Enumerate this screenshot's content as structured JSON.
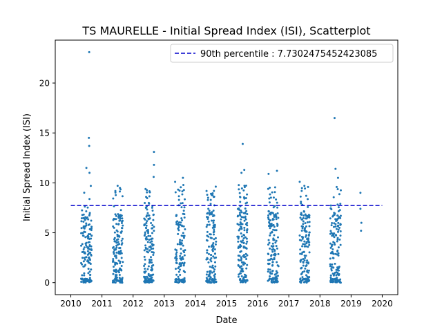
{
  "chart_data": {
    "type": "scatter",
    "title": "TS MAURELLE - Initial Spread Index (ISI), Scatterplot",
    "xlabel": "Date",
    "ylabel": "Initial Spread Index (ISI)",
    "xlim": [
      2009.5,
      2020.5
    ],
    "ylim": [
      -1.2,
      24.3
    ],
    "x_ticks": [
      "2010",
      "2011",
      "2012",
      "2013",
      "2014",
      "2015",
      "2016",
      "2017",
      "2018",
      "2019",
      "2020"
    ],
    "y_ticks": [
      "0",
      "5",
      "10",
      "15",
      "20"
    ],
    "legend": {
      "label": "90th percentile : 7.7302475452423085",
      "placement": "top-right"
    },
    "reference_line": {
      "value": 7.7302475452423085,
      "x_range": [
        2010,
        2020
      ],
      "color": "#0000cc",
      "style": "dashed"
    },
    "point_color": "#1f77b4",
    "seasons": [
      {
        "year": 2010,
        "start": 2010.33,
        "end": 2010.67,
        "n": 150
      },
      {
        "year": 2011,
        "start": 2011.35,
        "end": 2011.67,
        "n": 170
      },
      {
        "year": 2012,
        "start": 2012.35,
        "end": 2012.67,
        "n": 160
      },
      {
        "year": 2013,
        "start": 2013.35,
        "end": 2013.67,
        "n": 140
      },
      {
        "year": 2014,
        "start": 2014.35,
        "end": 2014.67,
        "n": 155
      },
      {
        "year": 2015,
        "start": 2015.35,
        "end": 2015.67,
        "n": 165
      },
      {
        "year": 2016,
        "start": 2016.33,
        "end": 2016.67,
        "n": 160
      },
      {
        "year": 2017,
        "start": 2017.35,
        "end": 2017.67,
        "n": 160
      },
      {
        "year": 2018,
        "start": 2018.33,
        "end": 2018.67,
        "n": 160
      }
    ],
    "highlight_points": [
      {
        "x": 2010.59,
        "y": 23.1
      },
      {
        "x": 2010.58,
        "y": 14.5
      },
      {
        "x": 2010.59,
        "y": 13.7
      },
      {
        "x": 2010.5,
        "y": 11.5
      },
      {
        "x": 2010.6,
        "y": 11.0
      },
      {
        "x": 2012.67,
        "y": 13.1
      },
      {
        "x": 2012.67,
        "y": 11.8
      },
      {
        "x": 2012.66,
        "y": 10.6
      },
      {
        "x": 2013.35,
        "y": 10.1
      },
      {
        "x": 2013.6,
        "y": 10.5
      },
      {
        "x": 2014.38,
        "y": 8.8
      },
      {
        "x": 2014.5,
        "y": 8.9
      },
      {
        "x": 2015.52,
        "y": 13.9
      },
      {
        "x": 2015.57,
        "y": 11.3
      },
      {
        "x": 2015.48,
        "y": 11.0
      },
      {
        "x": 2016.35,
        "y": 10.9
      },
      {
        "x": 2016.62,
        "y": 11.2
      },
      {
        "x": 2017.35,
        "y": 10.1
      },
      {
        "x": 2018.47,
        "y": 16.5
      },
      {
        "x": 2018.5,
        "y": 11.4
      },
      {
        "x": 2018.58,
        "y": 10.5
      },
      {
        "x": 2019.3,
        "y": 9.0
      },
      {
        "x": 2019.3,
        "y": 7.4
      },
      {
        "x": 2019.33,
        "y": 6.0
      },
      {
        "x": 2019.32,
        "y": 5.2
      }
    ]
  }
}
